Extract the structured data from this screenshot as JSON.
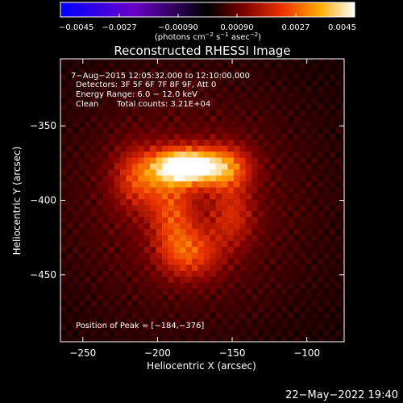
{
  "chart_data": {
    "type": "heatmap",
    "title": "Reconstructed RHESSI Image",
    "xlabel": "Heliocentric X (arcsec)",
    "ylabel": "Heliocentric Y (arcsec)",
    "xlim": [
      -265,
      -75
    ],
    "ylim": [
      -495,
      -305
    ],
    "x_ticks": [
      -250,
      -200,
      -150,
      -100
    ],
    "y_ticks": [
      -350,
      -400,
      -450
    ],
    "x_tick_labels": [
      "−250",
      "−200",
      "−150",
      "−100"
    ],
    "y_tick_labels": [
      "−350",
      "−400",
      "−450"
    ],
    "colorbar": {
      "range": [
        -0.0045,
        0.0045
      ],
      "ticks": [
        -0.0045,
        -0.0027,
        -0.0009,
        0.0009,
        0.0027,
        0.0045
      ],
      "tick_labels": [
        "−0.0045",
        "−0.0027",
        "−0.00090",
        "0.00090",
        "0.0027",
        "0.0045"
      ],
      "units_main": "(photons cm",
      "units_exp1": "−2",
      "units_mid": " s",
      "units_exp2": "−1",
      "units_tail": " asec",
      "units_exp3": "−2",
      "units_close": ")"
    },
    "annotations": {
      "time_range": "7−Aug−2015 12:05:32.000 to 12:10:00.000",
      "detectors": "Detectors: 3F 5F 6F 7F 8F 9F, Att 0",
      "energy": "Energy Range: 6.0 − 12.0 keV",
      "clean": "Clean",
      "total_counts": "Total counts: 3.21E+04",
      "peak": "Position of Peak = [−184,−376]"
    },
    "peak_position": [
      -184,
      -376
    ],
    "sources": [
      {
        "x": -182,
        "y": -377,
        "amplitude": 0.0045,
        "sigma_x": 14,
        "sigma_y": 8
      },
      {
        "x": -155,
        "y": -378,
        "amplitude": 0.0022,
        "sigma_x": 12,
        "sigma_y": 10
      },
      {
        "x": -212,
        "y": -385,
        "amplitude": 0.0016,
        "sigma_x": 12,
        "sigma_y": 14
      },
      {
        "x": -190,
        "y": -408,
        "amplitude": 0.0014,
        "sigma_x": 10,
        "sigma_y": 18
      },
      {
        "x": -178,
        "y": -435,
        "amplitude": 0.0016,
        "sigma_x": 14,
        "sigma_y": 12
      },
      {
        "x": -150,
        "y": -410,
        "amplitude": 0.0011,
        "sigma_x": 10,
        "sigma_y": 14
      }
    ],
    "background_level": 0.0011,
    "grid": false
  },
  "footer": {
    "datestamp": "22−May−2022 19:40"
  },
  "colors": {
    "background": "#000000",
    "foreground": "#ffffff",
    "colormap": [
      "#0000ff",
      "#6a00c8",
      "#000000",
      "#7a0000",
      "#e83000",
      "#ffaa00",
      "#ffffff"
    ]
  }
}
